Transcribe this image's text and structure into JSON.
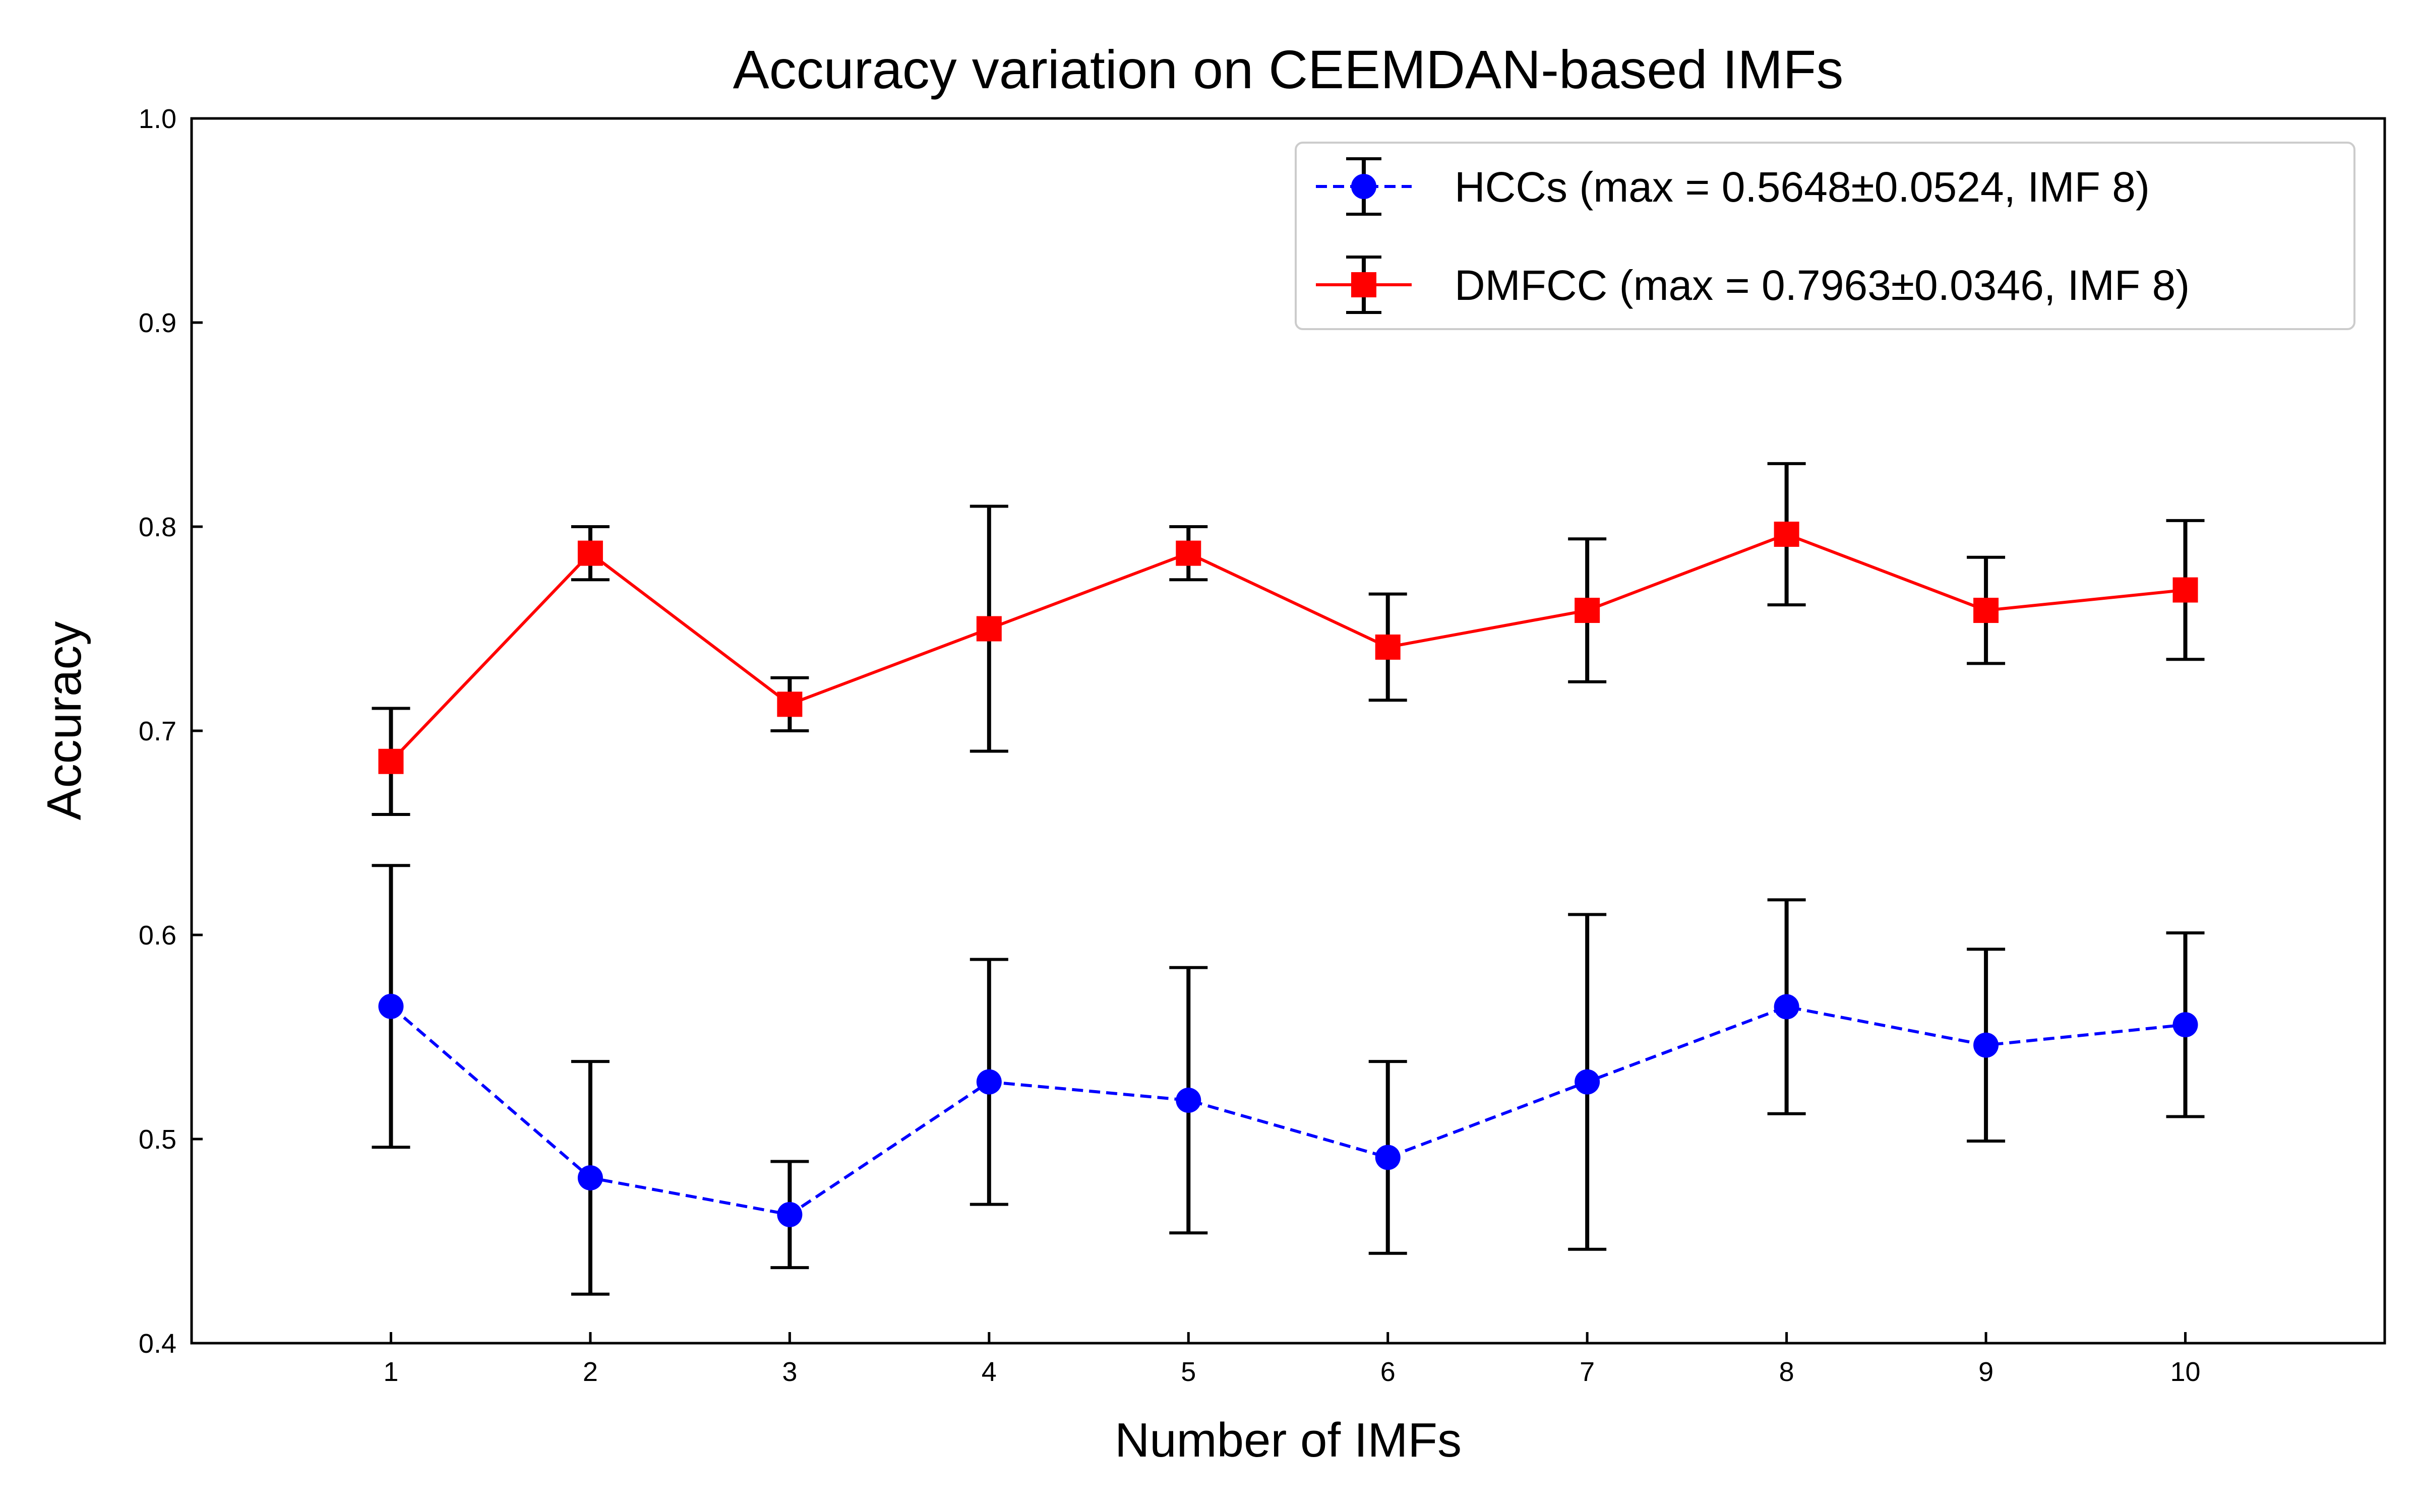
{
  "chart_data": {
    "type": "line",
    "title": "Accuracy variation on CEEMDAN-based IMFs",
    "xlabel": "Number of IMFs",
    "ylabel": "Accuracy",
    "xlim": [
      0,
      11
    ],
    "ylim": [
      0.4,
      1.0
    ],
    "x_ticks": [
      "1",
      "2",
      "3",
      "4",
      "5",
      "6",
      "7",
      "8",
      "9",
      "10"
    ],
    "y_ticks": [
      "0.4",
      "0.5",
      "0.6",
      "0.7",
      "0.8",
      "0.9",
      "1.0"
    ],
    "grid": false,
    "legend_position": "top-right",
    "x": [
      1,
      2,
      3,
      4,
      5,
      6,
      7,
      8,
      9,
      10
    ],
    "series": [
      {
        "name": "HCCs (max = 0.5648±0.0524, IMF 8)",
        "color": "#0000ff",
        "line_style": "dashed",
        "marker": "circle",
        "values": [
          0.565,
          0.481,
          0.463,
          0.528,
          0.519,
          0.491,
          0.528,
          0.5648,
          0.546,
          0.556
        ],
        "errors": [
          0.069,
          0.057,
          0.026,
          0.06,
          0.065,
          0.047,
          0.082,
          0.0524,
          0.047,
          0.045
        ]
      },
      {
        "name": "DMFCC (max = 0.7963±0.0346, IMF 8)",
        "color": "#ff0000",
        "line_style": "solid",
        "marker": "square",
        "values": [
          0.685,
          0.787,
          0.713,
          0.75,
          0.787,
          0.741,
          0.759,
          0.7963,
          0.759,
          0.769
        ],
        "errors": [
          0.026,
          0.013,
          0.013,
          0.06,
          0.013,
          0.026,
          0.035,
          0.0346,
          0.026,
          0.034
        ]
      }
    ]
  }
}
